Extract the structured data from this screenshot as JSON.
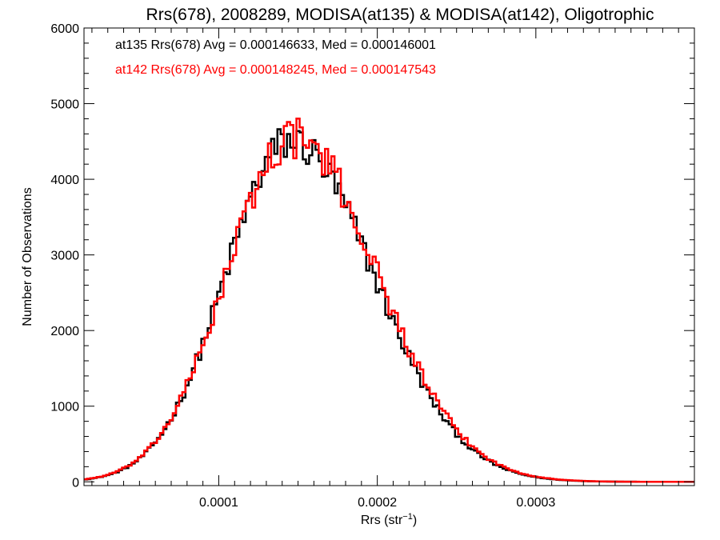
{
  "chart_data": {
    "type": "histogram-step",
    "title": "Rrs(678), 2008289, MODISA(at135) & MODISA(at142), Oligotrophic",
    "xlabel": "Rrs (str",
    "xlabel_sup": "−1",
    "xlabel_close": ")",
    "ylabel": "Number of Observations",
    "xlim": [
      1.5e-05,
      0.0004
    ],
    "ylim": [
      -50,
      6000
    ],
    "x_ticks": [
      0.0001,
      0.0002,
      0.0003
    ],
    "x_tick_labels": [
      "0.0001",
      "0.0002",
      "0.0003"
    ],
    "x_minor_step": 1e-05,
    "y_ticks": [
      0,
      1000,
      2000,
      3000,
      4000,
      5000,
      6000
    ],
    "y_tick_labels": [
      "0",
      "1000",
      "2000",
      "3000",
      "4000",
      "5000",
      "6000"
    ],
    "y_minor_step": 200,
    "bin_width": 2e-06,
    "annotations": [
      {
        "text": "at135 Rrs(678) Avg = 0.000146633, Med = 0.000146001",
        "color": "#000000"
      },
      {
        "text": "at142 Rrs(678) Avg = 0.000148245, Med = 0.000147543",
        "color": "#ff0000"
      }
    ],
    "series": [
      {
        "color": "#000000",
        "peak_x": 0.000145,
        "peak_y": 4500,
        "sigma_left": 4.1e-05,
        "sigma_right": 5.3e-05,
        "noise": 0.06
      },
      {
        "color": "#ff0000",
        "peak_x": 0.000147,
        "peak_y": 4550,
        "sigma_left": 4.2e-05,
        "sigma_right": 5.3e-05,
        "noise": 0.06
      }
    ]
  }
}
